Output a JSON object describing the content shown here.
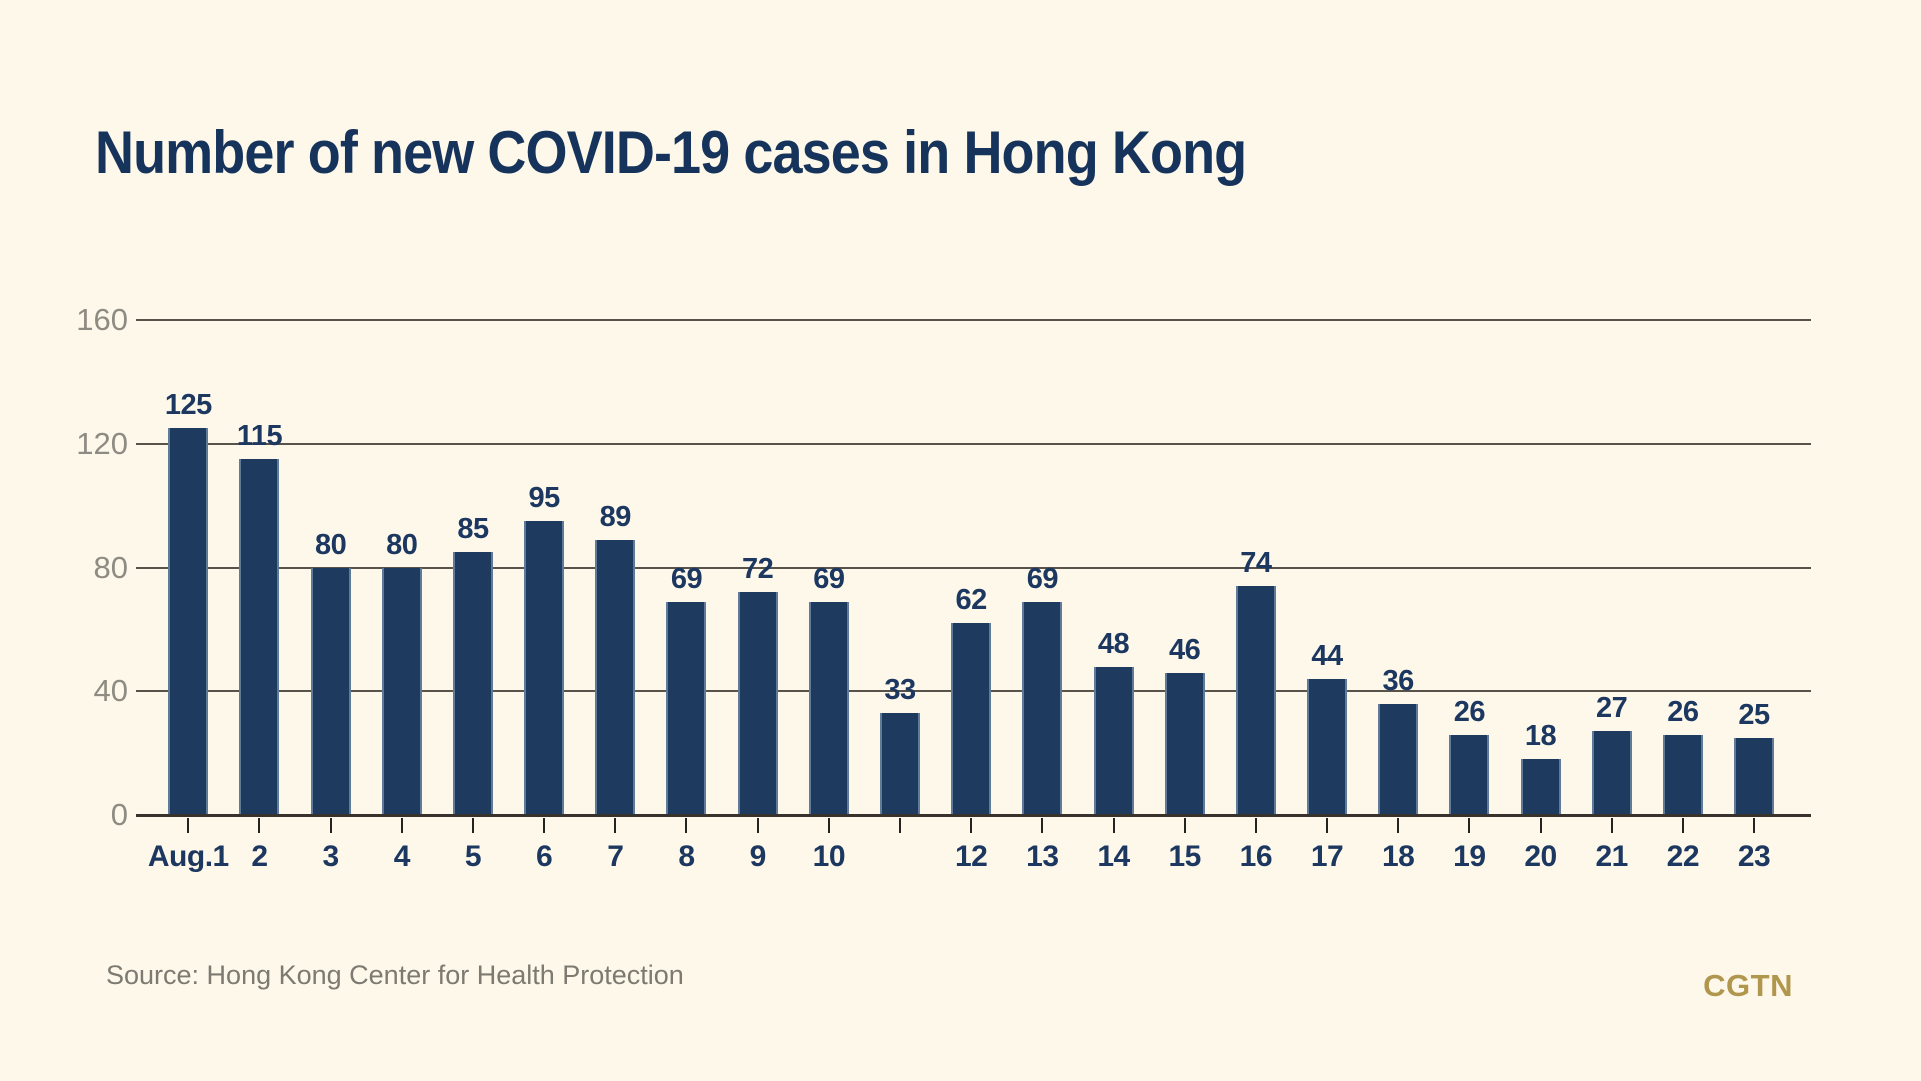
{
  "page": {
    "background": "#fdf8e9"
  },
  "title": {
    "text": "Number of new COVID-19 cases in Hong Kong",
    "color": "#16335c"
  },
  "source": {
    "text": "Source: Hong Kong Center for Health Protection"
  },
  "brand": {
    "text": "CGTN",
    "color": "#b1974e"
  },
  "chart_data": {
    "type": "bar",
    "title": "Number of new COVID-19 cases in Hong Kong",
    "categories": [
      "Aug.1",
      "2",
      "3",
      "4",
      "5",
      "6",
      "7",
      "8",
      "9",
      "10",
      "",
      "12",
      "13",
      "14",
      "15",
      "16",
      "17",
      "18",
      "19",
      "20",
      "21",
      "22",
      "23"
    ],
    "values": [
      125,
      115,
      80,
      80,
      85,
      95,
      89,
      69,
      72,
      69,
      33,
      62,
      69,
      48,
      46,
      74,
      44,
      36,
      26,
      18,
      27,
      26,
      25
    ],
    "value_labels_shown": true,
    "xlabel": "",
    "ylabel": "",
    "ylim": [
      0,
      160
    ],
    "y_ticks": [
      0,
      40,
      80,
      120,
      160
    ],
    "grid": true,
    "legend": "none",
    "bar_color": "#1e3a5e",
    "label_color": "#1c3760",
    "grid_color": "#57534b",
    "axis_color": "#37332c",
    "y_tick_color": "#8e8b83"
  }
}
